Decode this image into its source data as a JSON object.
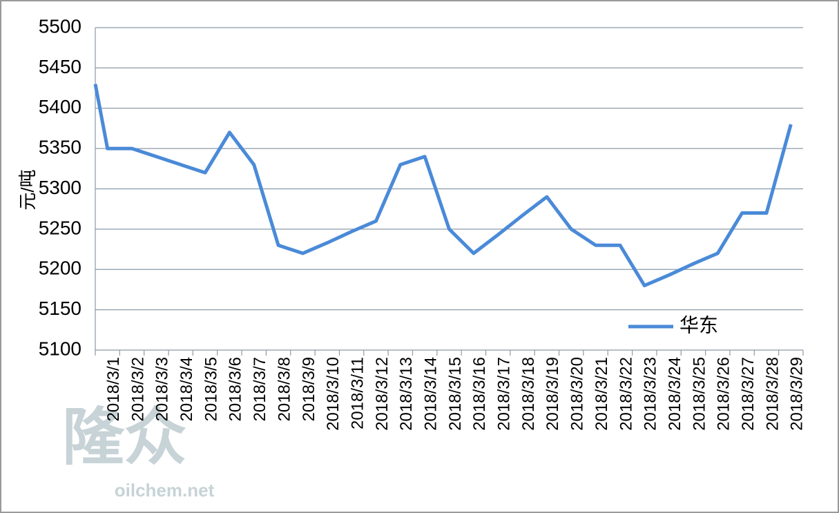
{
  "chart_data": {
    "type": "line",
    "y_label": "元/吨",
    "watermark": [
      "隆众",
      "oilchem.net"
    ],
    "categories": [
      null,
      "2018/3/1",
      "2018/3/2",
      "2018/3/3",
      "2018/3/4",
      "2018/3/5",
      "2018/3/6",
      "2018/3/7",
      "2018/3/8",
      "2018/3/9",
      "2018/3/10",
      "2018/3/11",
      "2018/3/12",
      "2018/3/13",
      "2018/3/14",
      "2018/3/15",
      "2018/3/16",
      "2018/3/17",
      "2018/3/18",
      "2018/3/19",
      "2018/3/20",
      "2018/3/21",
      "2018/3/22",
      "2018/3/23",
      "2018/3/24",
      "2018/3/25",
      "2018/3/26",
      "2018/3/27",
      "2018/3/28",
      "2018/3/29"
    ],
    "series": [
      {
        "name": "华东",
        "color": "#4a8ad8",
        "values": [
          5430,
          5350,
          5350,
          5340,
          5330,
          5320,
          5370,
          5330,
          5230,
          5220,
          5233,
          5247,
          5260,
          5330,
          5340,
          5250,
          5220,
          5243,
          5267,
          5290,
          5250,
          5230,
          5230,
          5180,
          5193,
          5207,
          5220,
          5270,
          5270,
          5380
        ]
      }
    ],
    "ylim": [
      5100,
      5500
    ],
    "yticks": [
      5100,
      5150,
      5200,
      5250,
      5300,
      5350,
      5400,
      5450,
      5500
    ],
    "grid": true,
    "legend": "lower right"
  }
}
